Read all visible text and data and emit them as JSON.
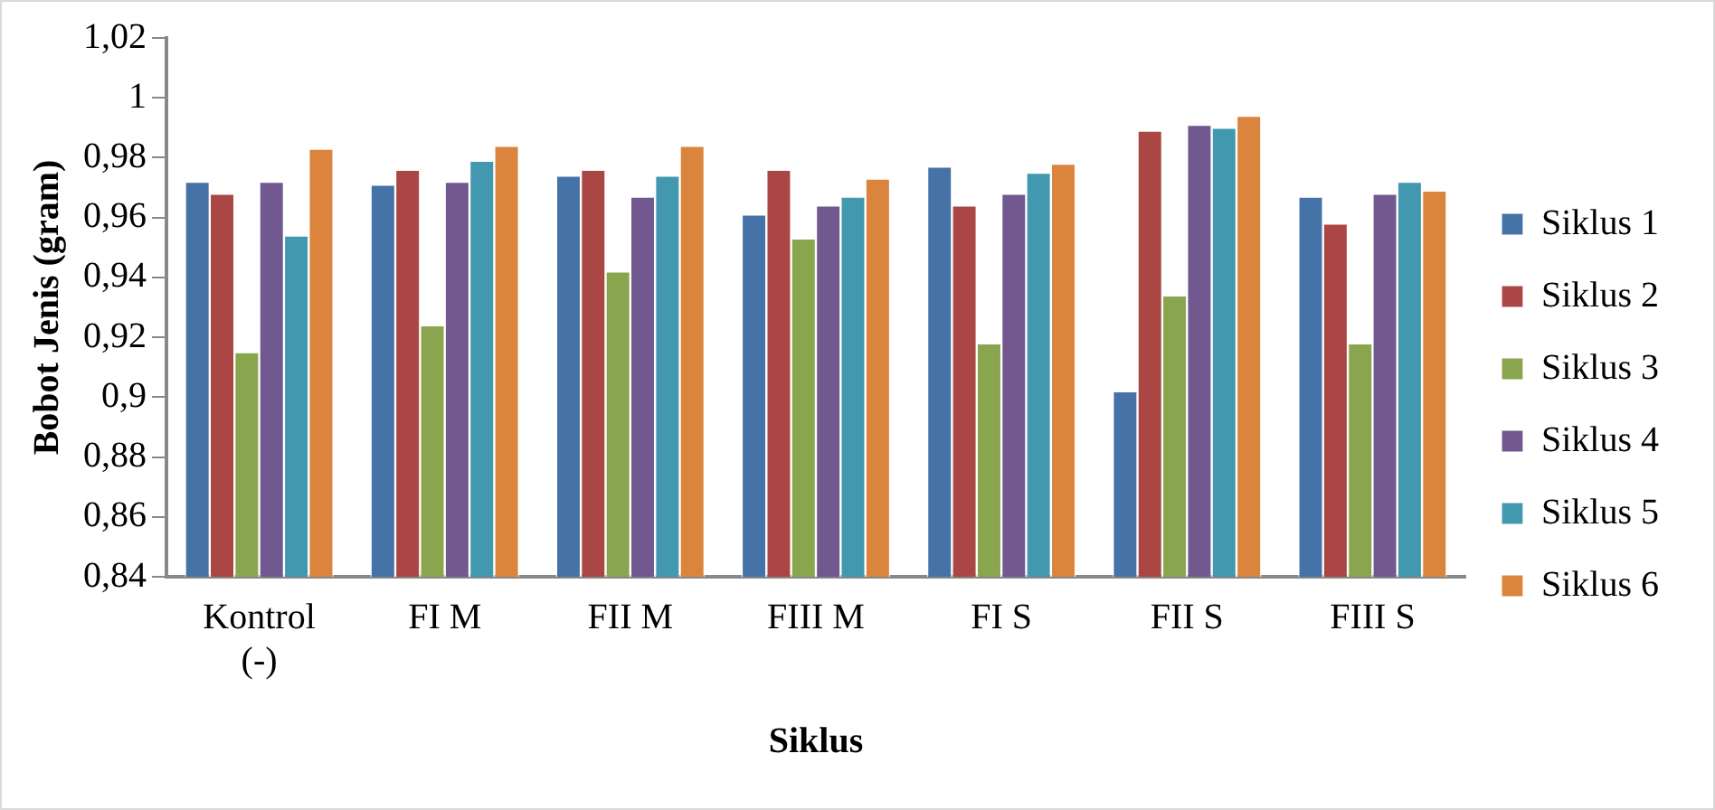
{
  "chart_data": {
    "type": "bar",
    "xlabel": "Siklus",
    "ylabel": "Bobot Jenis (gram)",
    "categories": [
      "Kontrol (-)",
      "FI M",
      "FII M",
      "FIII M",
      "FI S",
      "FII S",
      "FIII S"
    ],
    "series": [
      {
        "name": "Siklus 1",
        "color": "#4572a7",
        "values": [
          0.972,
          0.971,
          0.974,
          0.961,
          0.977,
          0.902,
          0.967
        ]
      },
      {
        "name": "Siklus 2",
        "color": "#aa4643",
        "values": [
          0.968,
          0.976,
          0.976,
          0.976,
          0.964,
          0.989,
          0.958
        ]
      },
      {
        "name": "Siklus 3",
        "color": "#89a54e",
        "values": [
          0.915,
          0.924,
          0.942,
          0.953,
          0.918,
          0.934,
          0.918
        ]
      },
      {
        "name": "Siklus 4",
        "color": "#71588f",
        "values": [
          0.972,
          0.972,
          0.967,
          0.964,
          0.968,
          0.991,
          0.968
        ]
      },
      {
        "name": "Siklus 5",
        "color": "#4198af",
        "values": [
          0.954,
          0.979,
          0.974,
          0.967,
          0.975,
          0.99,
          0.972
        ]
      },
      {
        "name": "Siklus 6",
        "color": "#db843d",
        "values": [
          0.983,
          0.984,
          0.984,
          0.973,
          0.978,
          0.994,
          0.969
        ]
      }
    ],
    "ylim": [
      0.84,
      1.02
    ],
    "yticks": [
      {
        "value": 0.84,
        "label": "0,84"
      },
      {
        "value": 0.86,
        "label": "0,86"
      },
      {
        "value": 0.88,
        "label": "0,88"
      },
      {
        "value": 0.9,
        "label": "0,9"
      },
      {
        "value": 0.92,
        "label": "0,92"
      },
      {
        "value": 0.94,
        "label": "0,94"
      },
      {
        "value": 0.96,
        "label": "0,96"
      },
      {
        "value": 0.98,
        "label": "0,98"
      },
      {
        "value": 1,
        "label": "1"
      },
      {
        "value": 1.02,
        "label": "1,02"
      }
    ],
    "grid": false,
    "legend": "right"
  }
}
